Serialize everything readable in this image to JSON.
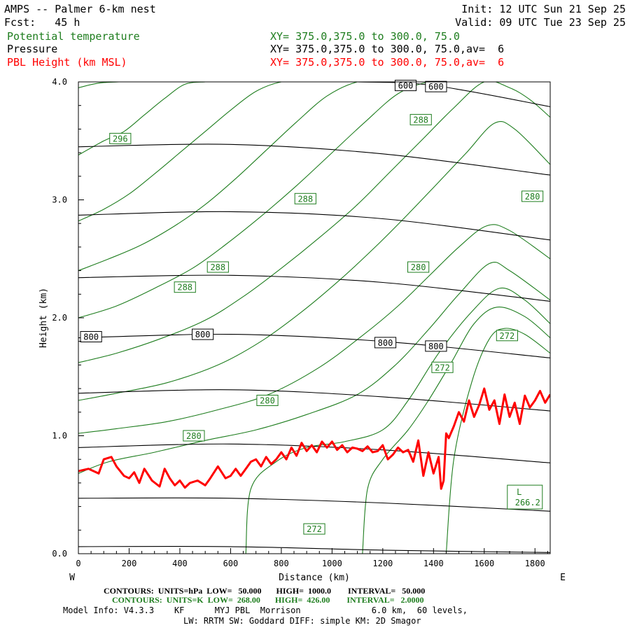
{
  "header": {
    "title": "AMPS -- Palmer 6-km nest",
    "forecast": "Fcst:   45 h",
    "init": "Init: 12 UTC Sun 21 Sep 25",
    "valid": "Valid: 09 UTC Tue 23 Sep 25",
    "fields": [
      {
        "name": "Potential temperature",
        "xs": "XY= 375.0,375.0 to 300.0, 75.0",
        "color": "#1e7d1e"
      },
      {
        "name": "Pressure",
        "xs": "XY= 375.0,375.0 to 300.0, 75.0,av=  6",
        "color": "#000000"
      },
      {
        "name": "PBL Height (km MSL)",
        "xs": "XY= 375.0,375.0 to 300.0, 75.0,av=  6",
        "color": "#ff0000"
      }
    ]
  },
  "footer": {
    "contours_p": "CONTOURS:  UNITS=hPa  LOW=   50.000       HIGH=  1000.0        INTERVAL=   50.000",
    "contours_theta": "CONTOURS:  UNITS=K  LOW=  268.00       HIGH=  426.00        INTERVAL=   2.0000",
    "model_info": "Model Info: V4.3.3    KF      MYJ PBL  Morrison              6.0 km,  60 levels,",
    "model_info2": "LW: RRTM SW: Goddard DIFF: simple KM: 2D Smagor"
  },
  "chart_data": {
    "type": "line",
    "title": "AMPS -- Palmer 6-km nest",
    "xlabel": "Distance (km)",
    "ylabel": "Height (km)",
    "xlim": [
      0,
      1860
    ],
    "ylim": [
      0.0,
      4.0
    ],
    "x_ticks": [
      0,
      200,
      400,
      600,
      800,
      1000,
      1200,
      1400,
      1600,
      1800
    ],
    "x_tick_labels": [
      "0",
      "200",
      "400",
      "600",
      "800",
      "1000",
      "1200",
      "1400",
      "1600",
      "1800"
    ],
    "y_ticks": [
      0.0,
      1.0,
      2.0,
      3.0,
      4.0
    ],
    "y_tick_labels": [
      "0.0",
      "1.0",
      "2.0",
      "3.0",
      "4.0"
    ],
    "left_end_label": "W",
    "right_end_label": "E",
    "colors": {
      "pressure": "#000000",
      "theta": "#1e7d1e",
      "pbl": "#ff0000"
    },
    "pressure_contours": [
      {
        "name": "1000 hPa",
        "x": [
          0,
          600,
          1200,
          1860
        ],
        "y": [
          0.06,
          0.06,
          0.03,
          0.01
        ]
      },
      {
        "name": "950 hPa",
        "x": [
          0,
          600,
          1200,
          1860
        ],
        "y": [
          0.47,
          0.47,
          0.43,
          0.36
        ]
      },
      {
        "name": "900 hPa",
        "x": [
          0,
          600,
          1200,
          1860
        ],
        "y": [
          0.9,
          0.93,
          0.88,
          0.77
        ]
      },
      {
        "name": "850 hPa",
        "x": [
          0,
          600,
          1200,
          1860
        ],
        "y": [
          1.36,
          1.39,
          1.33,
          1.21
        ]
      },
      {
        "name": "800 hPa",
        "x": [
          0,
          600,
          1200,
          1860
        ],
        "y": [
          1.83,
          1.86,
          1.8,
          1.66
        ]
      },
      {
        "name": "750 hPa",
        "x": [
          0,
          600,
          1200,
          1860
        ],
        "y": [
          2.34,
          2.36,
          2.3,
          2.14
        ]
      },
      {
        "name": "700 hPa",
        "x": [
          0,
          600,
          1200,
          1860
        ],
        "y": [
          2.87,
          2.9,
          2.84,
          2.66
        ]
      },
      {
        "name": "650 hPa",
        "x": [
          0,
          600,
          1200,
          1860
        ],
        "y": [
          3.45,
          3.47,
          3.39,
          3.21
        ]
      },
      {
        "name": "600 hPa",
        "x": [
          1100,
          1400,
          1860
        ],
        "y": [
          4.0,
          3.97,
          3.79
        ]
      }
    ],
    "pressure_labels": [
      {
        "text": "800",
        "x": 50,
        "y": 1.84
      },
      {
        "text": "800",
        "x": 490,
        "y": 1.86
      },
      {
        "text": "800",
        "x": 1210,
        "y": 1.79
      },
      {
        "text": "800",
        "x": 1410,
        "y": 1.76
      },
      {
        "text": "600",
        "x": 1290,
        "y": 3.97
      },
      {
        "text": "600",
        "x": 1410,
        "y": 3.96
      }
    ],
    "theta_contours": [
      {
        "name": "theta-1",
        "x": [
          1450,
          1480,
          1550,
          1620,
          1680,
          1760,
          1860
        ],
        "y": [
          0.0,
          0.8,
          1.45,
          1.82,
          1.91,
          1.86,
          1.7
        ]
      },
      {
        "name": "theta-2",
        "x": [
          1120,
          1140,
          1200,
          1300,
          1380,
          1470,
          1560,
          1650,
          1760,
          1860
        ],
        "y": [
          0.0,
          0.55,
          0.8,
          1.05,
          1.3,
          1.62,
          1.95,
          2.09,
          2.01,
          1.83
        ]
      },
      {
        "name": "theta-3",
        "x": [
          660,
          680,
          780,
          900,
          1050,
          1200,
          1300,
          1420,
          1550,
          1660,
          1760,
          1860
        ],
        "y": [
          0.0,
          0.55,
          0.78,
          0.9,
          0.95,
          1.05,
          1.3,
          1.7,
          2.05,
          2.25,
          2.15,
          1.95
        ]
      },
      {
        "name": "theta-4",
        "x": [
          0,
          120,
          300,
          500,
          700,
          900,
          1100,
          1250,
          1380,
          1500,
          1620,
          1700,
          1860
        ],
        "y": [
          0.68,
          0.78,
          0.86,
          0.96,
          1.05,
          1.18,
          1.35,
          1.6,
          1.9,
          2.2,
          2.46,
          2.4,
          2.15
        ]
      },
      {
        "name": "theta-5",
        "x": [
          0,
          150,
          350,
          550,
          750,
          950,
          1120,
          1260,
          1380,
          1500,
          1610,
          1700,
          1860
        ],
        "y": [
          1.02,
          1.06,
          1.12,
          1.22,
          1.35,
          1.58,
          1.85,
          2.1,
          2.35,
          2.6,
          2.78,
          2.74,
          2.5
        ]
      },
      {
        "name": "theta-6",
        "x": [
          0,
          150,
          350,
          550,
          720,
          880,
          1030,
          1170,
          1300,
          1420,
          1530,
          1640,
          1720,
          1860
        ],
        "y": [
          1.3,
          1.36,
          1.45,
          1.6,
          1.8,
          2.05,
          2.32,
          2.6,
          2.88,
          3.15,
          3.4,
          3.65,
          3.6,
          3.3
        ]
      },
      {
        "name": "theta-7",
        "x": [
          0,
          150,
          320,
          500,
          650,
          800,
          950,
          1100,
          1230,
          1360,
          1480,
          1600,
          1700,
          1780,
          1860
        ],
        "y": [
          1.62,
          1.7,
          1.82,
          1.98,
          2.18,
          2.42,
          2.68,
          2.96,
          3.24,
          3.52,
          3.78,
          4.0,
          3.95,
          3.85,
          3.7
        ]
      },
      {
        "name": "theta-8",
        "x": [
          0,
          150,
          300,
          450,
          580,
          720,
          860,
          1000,
          1130,
          1260,
          1380,
          1480,
          1560
        ],
        "y": [
          2.0,
          2.1,
          2.25,
          2.42,
          2.62,
          2.86,
          3.12,
          3.4,
          3.66,
          3.9,
          4.0,
          4.0,
          4.0
        ]
      },
      {
        "name": "theta-9",
        "x": [
          0,
          120,
          250,
          380,
          500,
          620,
          740,
          860,
          980,
          1100,
          1200
        ],
        "y": [
          2.4,
          2.5,
          2.62,
          2.78,
          2.96,
          3.18,
          3.42,
          3.66,
          3.88,
          4.0,
          4.0
        ]
      },
      {
        "name": "theta-10",
        "x": [
          0,
          100,
          200,
          300,
          400,
          500,
          600,
          700,
          800,
          880
        ],
        "y": [
          2.82,
          2.92,
          3.05,
          3.22,
          3.4,
          3.58,
          3.76,
          3.92,
          4.0,
          4.0
        ]
      },
      {
        "name": "theta-11",
        "x": [
          0,
          100,
          180,
          260,
          340,
          420,
          500
        ],
        "y": [
          3.38,
          3.5,
          3.58,
          3.72,
          3.86,
          3.98,
          4.0
        ]
      },
      {
        "name": "theta-12",
        "x": [
          0,
          80,
          160,
          240
        ],
        "y": [
          3.95,
          3.99,
          4.0,
          4.0
        ]
      }
    ],
    "theta_labels": [
      {
        "text": "296",
        "x": 165,
        "y": 3.52
      },
      {
        "text": "288",
        "x": 895,
        "y": 3.01
      },
      {
        "text": "288",
        "x": 1350,
        "y": 3.68
      },
      {
        "text": "288",
        "x": 550,
        "y": 2.43
      },
      {
        "text": "288",
        "x": 420,
        "y": 2.26
      },
      {
        "text": "280",
        "x": 1790,
        "y": 3.03
      },
      {
        "text": "280",
        "x": 1340,
        "y": 2.43
      },
      {
        "text": "280",
        "x": 745,
        "y": 1.3
      },
      {
        "text": "280",
        "x": 455,
        "y": 1.0
      },
      {
        "text": "272",
        "x": 1690,
        "y": 1.85
      },
      {
        "text": "272",
        "x": 1435,
        "y": 1.58
      },
      {
        "text": "272",
        "x": 930,
        "y": 0.21
      }
    ],
    "low_label": {
      "text": "L",
      "value": "266.2",
      "x": 1760,
      "y": 0.48
    },
    "pbl_height": {
      "x": [
        0,
        40,
        80,
        100,
        130,
        150,
        180,
        200,
        220,
        240,
        260,
        290,
        320,
        340,
        360,
        380,
        400,
        420,
        440,
        470,
        500,
        520,
        550,
        580,
        600,
        620,
        640,
        660,
        680,
        700,
        720,
        740,
        760,
        780,
        800,
        820,
        840,
        860,
        880,
        900,
        920,
        940,
        960,
        980,
        1000,
        1020,
        1040,
        1060,
        1080,
        1100,
        1120,
        1140,
        1160,
        1180,
        1200,
        1220,
        1240,
        1260,
        1280,
        1300,
        1320,
        1340,
        1360,
        1380,
        1400,
        1420,
        1430,
        1440,
        1450,
        1460,
        1480,
        1500,
        1520,
        1540,
        1560,
        1580,
        1600,
        1620,
        1640,
        1660,
        1680,
        1700,
        1720,
        1740,
        1760,
        1780,
        1800,
        1820,
        1840,
        1860
      ],
      "y": [
        0.7,
        0.72,
        0.68,
        0.8,
        0.82,
        0.74,
        0.66,
        0.64,
        0.69,
        0.6,
        0.72,
        0.62,
        0.57,
        0.72,
        0.64,
        0.58,
        0.62,
        0.56,
        0.6,
        0.62,
        0.58,
        0.64,
        0.74,
        0.64,
        0.66,
        0.72,
        0.66,
        0.72,
        0.78,
        0.8,
        0.74,
        0.82,
        0.76,
        0.8,
        0.86,
        0.8,
        0.9,
        0.83,
        0.94,
        0.87,
        0.92,
        0.86,
        0.95,
        0.9,
        0.95,
        0.88,
        0.92,
        0.86,
        0.9,
        0.89,
        0.87,
        0.91,
        0.86,
        0.87,
        0.92,
        0.8,
        0.84,
        0.9,
        0.86,
        0.88,
        0.78,
        0.96,
        0.66,
        0.86,
        0.68,
        0.82,
        0.55,
        0.62,
        1.02,
        0.98,
        1.08,
        1.2,
        1.12,
        1.3,
        1.16,
        1.26,
        1.4,
        1.22,
        1.3,
        1.1,
        1.35,
        1.16,
        1.28,
        1.1,
        1.34,
        1.24,
        1.3,
        1.38,
        1.28,
        1.35
      ]
    }
  }
}
